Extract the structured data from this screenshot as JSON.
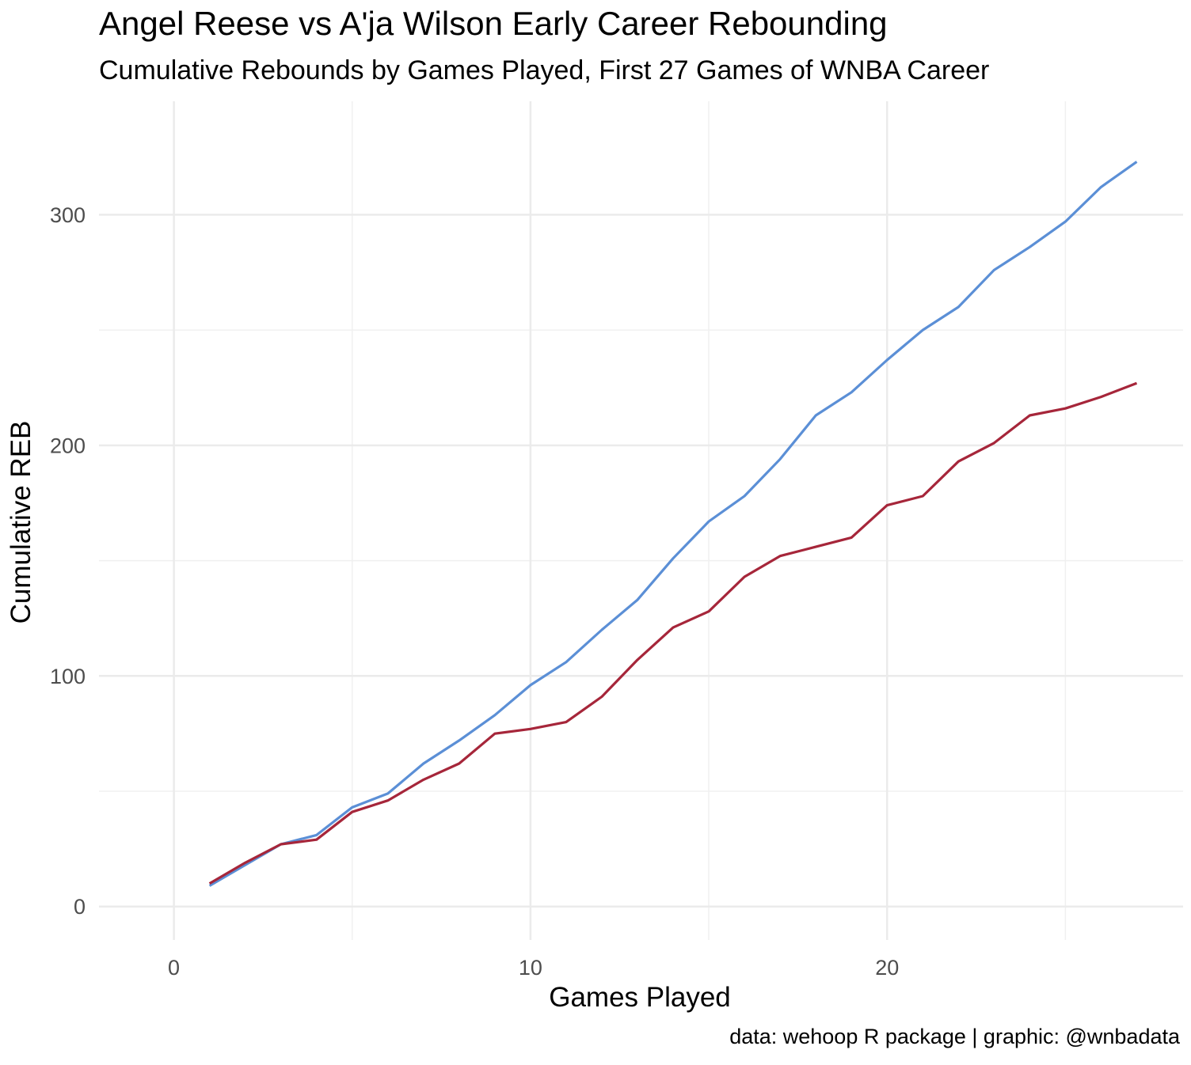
{
  "chart_data": {
    "type": "line",
    "title": "Angel Reese vs A'ja Wilson Early Career Rebounding",
    "subtitle": "Cumulative Rebounds by Games Played, First 27 Games of WNBA Career",
    "caption": "data: wehoop R package | graphic: @wnbadata",
    "xlabel": "Games Played",
    "ylabel": "Cumulative REB",
    "xlim": [
      -2.1,
      28.3
    ],
    "ylim": [
      -14.5,
      349.2
    ],
    "x_ticks": [
      0,
      10,
      20
    ],
    "x_tick_labels": [
      "0",
      "10",
      "20"
    ],
    "x_minor_ticks": [
      5,
      15,
      25
    ],
    "y_ticks": [
      0,
      100,
      200,
      300
    ],
    "y_tick_labels": [
      "0",
      "100",
      "200",
      "300"
    ],
    "y_minor_ticks": [
      50,
      150,
      250
    ],
    "grid": true,
    "legend": "none",
    "series": [
      {
        "color": "#5b8fd6",
        "x": [
          1,
          2,
          3,
          4,
          5,
          6,
          7,
          8,
          9,
          10,
          11,
          12,
          13,
          14,
          15,
          16,
          17,
          18,
          19,
          20,
          21,
          22,
          23,
          24,
          25,
          26,
          27
        ],
        "values": [
          9,
          18,
          27,
          31,
          43,
          49,
          62,
          72,
          83,
          96,
          106,
          120,
          133,
          151,
          167,
          178,
          194,
          213,
          223,
          237,
          250,
          260,
          276,
          286,
          297,
          312,
          323
        ]
      },
      {
        "color": "#a6263a",
        "x": [
          1,
          2,
          3,
          4,
          5,
          6,
          7,
          8,
          9,
          10,
          11,
          12,
          13,
          14,
          15,
          16,
          17,
          18,
          19,
          20,
          21,
          22,
          23,
          24,
          25,
          26,
          27
        ],
        "values": [
          10,
          19,
          27,
          29,
          41,
          46,
          55,
          62,
          75,
          77,
          80,
          91,
          107,
          121,
          128,
          143,
          152,
          156,
          160,
          174,
          178,
          193,
          201,
          213,
          216,
          221,
          227
        ]
      }
    ]
  }
}
